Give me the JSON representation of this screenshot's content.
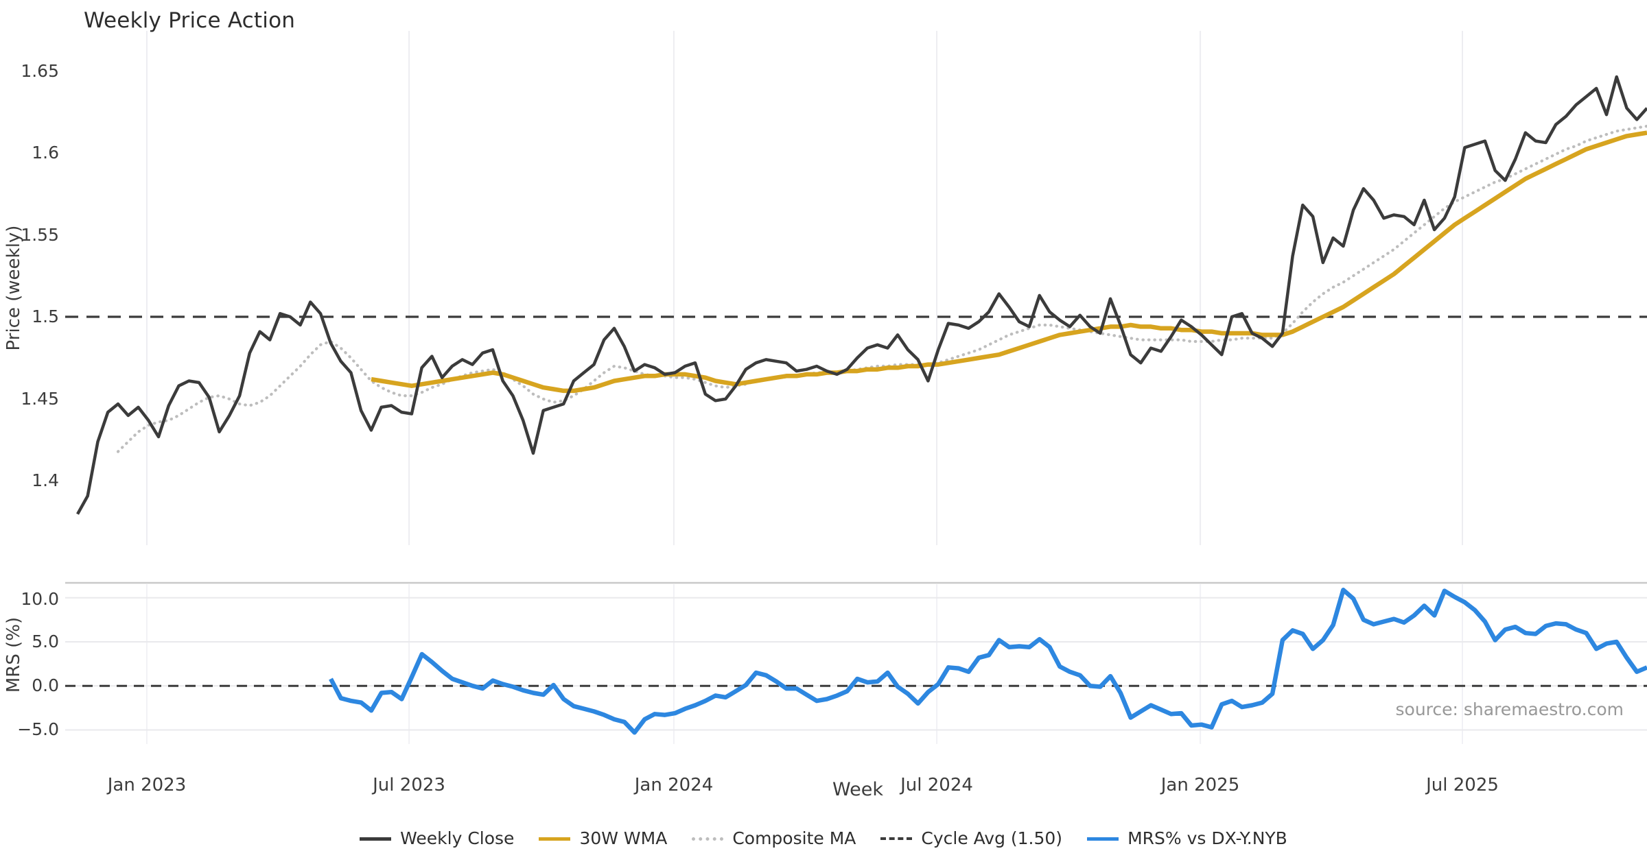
{
  "title": "Weekly Price Action",
  "source_note": "source: sharemaestro.com",
  "colors": {
    "weekly_close": "#3b3b3b",
    "wma": "#d7a41f",
    "composite": "#bdbdbd",
    "cycle_avg": "#3b3b3b",
    "mrs": "#2d87e0",
    "grid_vertical": "#ededf1",
    "grid_vertical_lower": "#f1f1f5",
    "grid_horizontal": "#e9e9ec",
    "spine": "#c9c9c9",
    "text": "#3c3c3c",
    "muted_text": "#989898"
  },
  "x_axis": {
    "label": "Week",
    "tick_labels": [
      "Jan 2023",
      "Jul 2023",
      "Jan 2024",
      "Jul 2024",
      "Jan 2025",
      "Jul 2025"
    ]
  },
  "legend": {
    "position": "bottom-center",
    "items": [
      {
        "label": "Weekly Close",
        "color": "#3b3b3b",
        "style": "solid"
      },
      {
        "label": "30W WMA",
        "color": "#d7a41f",
        "style": "solid"
      },
      {
        "label": "Composite MA",
        "color": "#bdbdbd",
        "style": "dotted"
      },
      {
        "label": "Cycle Avg (1.50)",
        "color": "#3b3b3b",
        "style": "dashed"
      },
      {
        "label": "MRS% vs DX-Y.NYB",
        "color": "#2d87e0",
        "style": "solid"
      }
    ]
  },
  "chart_data": [
    {
      "id": "price",
      "type": "line",
      "title": "Weekly Price Action",
      "ylabel": "Price (weekly)",
      "xlabel": "Week",
      "x_range": [
        "2022-11",
        "2025-11"
      ],
      "x_frequency": "weekly",
      "ylim": [
        1.359,
        1.674
      ],
      "y_ticks": [
        1.65,
        1.6,
        1.55,
        1.5,
        1.45,
        1.4
      ],
      "y_tick_labels": [
        "1.65",
        "1.6",
        "1.55",
        "1.5",
        "1.45",
        "1.4"
      ],
      "grid": "vertical-only",
      "series": [
        {
          "name": "Weekly Close",
          "color": "#3b3b3b",
          "style": "solid",
          "start_frac": 0.0078,
          "values": [
            1.38,
            1.391,
            1.424,
            1.442,
            1.447,
            1.44,
            1.445,
            1.437,
            1.427,
            1.446,
            1.458,
            1.461,
            1.46,
            1.451,
            1.43,
            1.44,
            1.452,
            1.478,
            1.491,
            1.486,
            1.502,
            1.5,
            1.495,
            1.509,
            1.502,
            1.484,
            1.473,
            1.466,
            1.443,
            1.431,
            1.445,
            1.446,
            1.442,
            1.441,
            1.469,
            1.476,
            1.463,
            1.47,
            1.474,
            1.471,
            1.478,
            1.48,
            1.461,
            1.452,
            1.437,
            1.417,
            1.443,
            1.445,
            1.447,
            1.461,
            1.466,
            1.471,
            1.486,
            1.493,
            1.482,
            1.467,
            1.471,
            1.469,
            1.465,
            1.466,
            1.47,
            1.472,
            1.453,
            1.449,
            1.45,
            1.458,
            1.468,
            1.472,
            1.474,
            1.473,
            1.472,
            1.467,
            1.468,
            1.47,
            1.467,
            1.465,
            1.468,
            1.475,
            1.481,
            1.483,
            1.481,
            1.489,
            1.48,
            1.474,
            1.461,
            1.48,
            1.496,
            1.495,
            1.493,
            1.497,
            1.503,
            1.514,
            1.506,
            1.497,
            1.494,
            1.513,
            1.503,
            1.498,
            1.494,
            1.501,
            1.494,
            1.49,
            1.511,
            1.495,
            1.477,
            1.472,
            1.481,
            1.479,
            1.488,
            1.498,
            1.494,
            1.489,
            1.483,
            1.477,
            1.5,
            1.502,
            1.49,
            1.487,
            1.482,
            1.49,
            1.537,
            1.568,
            1.561,
            1.533,
            1.548,
            1.543,
            1.565,
            1.578,
            1.571,
            1.56,
            1.562,
            1.561,
            1.556,
            1.571,
            1.553,
            1.56,
            1.573,
            1.603,
            1.605,
            1.607,
            1.589,
            1.583,
            1.596,
            1.612,
            1.607,
            1.606,
            1.617,
            1.622,
            1.629,
            1.634,
            1.639,
            1.623,
            1.646,
            1.627,
            1.62,
            1.627
          ]
        },
        {
          "name": "30W WMA",
          "color": "#d7a41f",
          "style": "solid",
          "start_frac": 0.1935,
          "values": [
            1.462,
            1.461,
            1.46,
            1.459,
            1.458,
            1.459,
            1.46,
            1.461,
            1.462,
            1.463,
            1.464,
            1.465,
            1.466,
            1.465,
            1.463,
            1.461,
            1.459,
            1.457,
            1.456,
            1.455,
            1.455,
            1.456,
            1.457,
            1.459,
            1.461,
            1.462,
            1.463,
            1.464,
            1.464,
            1.465,
            1.465,
            1.465,
            1.464,
            1.463,
            1.461,
            1.46,
            1.459,
            1.46,
            1.461,
            1.462,
            1.463,
            1.464,
            1.464,
            1.465,
            1.465,
            1.466,
            1.466,
            1.467,
            1.467,
            1.468,
            1.468,
            1.469,
            1.469,
            1.47,
            1.47,
            1.471,
            1.471,
            1.472,
            1.473,
            1.474,
            1.475,
            1.476,
            1.477,
            1.479,
            1.481,
            1.483,
            1.485,
            1.487,
            1.489,
            1.49,
            1.491,
            1.492,
            1.493,
            1.494,
            1.494,
            1.495,
            1.494,
            1.494,
            1.493,
            1.493,
            1.492,
            1.492,
            1.491,
            1.491,
            1.49,
            1.49,
            1.49,
            1.49,
            1.489,
            1.489,
            1.489,
            1.491,
            1.494,
            1.497,
            1.5,
            1.503,
            1.506,
            1.51,
            1.514,
            1.518,
            1.522,
            1.526,
            1.531,
            1.536,
            1.541,
            1.546,
            1.551,
            1.556,
            1.56,
            1.564,
            1.568,
            1.572,
            1.576,
            1.58,
            1.584,
            1.587,
            1.59,
            1.593,
            1.596,
            1.599,
            1.602,
            1.604,
            1.606,
            1.608,
            1.61,
            1.611,
            1.612
          ]
        },
        {
          "name": "Composite MA",
          "color": "#bdbdbd",
          "style": "dotted",
          "start_frac": 0.0334,
          "values": [
            1.418,
            1.424,
            1.43,
            1.434,
            1.436,
            1.437,
            1.44,
            1.444,
            1.448,
            1.451,
            1.452,
            1.45,
            1.447,
            1.446,
            1.448,
            1.452,
            1.458,
            1.464,
            1.47,
            1.477,
            1.483,
            1.485,
            1.481,
            1.475,
            1.468,
            1.461,
            1.457,
            1.454,
            1.452,
            1.452,
            1.454,
            1.457,
            1.459,
            1.462,
            1.464,
            1.466,
            1.467,
            1.468,
            1.466,
            1.462,
            1.458,
            1.453,
            1.45,
            1.448,
            1.449,
            1.452,
            1.456,
            1.461,
            1.466,
            1.47,
            1.469,
            1.467,
            1.465,
            1.464,
            1.464,
            1.463,
            1.463,
            1.462,
            1.46,
            1.458,
            1.457,
            1.458,
            1.459,
            1.461,
            1.462,
            1.463,
            1.464,
            1.464,
            1.465,
            1.466,
            1.466,
            1.466,
            1.467,
            1.468,
            1.469,
            1.47,
            1.47,
            1.471,
            1.471,
            1.471,
            1.471,
            1.472,
            1.474,
            1.476,
            1.478,
            1.48,
            1.483,
            1.486,
            1.489,
            1.491,
            1.493,
            1.495,
            1.495,
            1.494,
            1.493,
            1.492,
            1.491,
            1.49,
            1.489,
            1.488,
            1.487,
            1.486,
            1.486,
            1.486,
            1.486,
            1.486,
            1.485,
            1.485,
            1.485,
            1.486,
            1.486,
            1.487,
            1.487,
            1.487,
            1.487,
            1.49,
            1.496,
            1.503,
            1.509,
            1.514,
            1.518,
            1.521,
            1.525,
            1.529,
            1.533,
            1.537,
            1.541,
            1.546,
            1.551,
            1.556,
            1.561,
            1.566,
            1.57,
            1.573,
            1.576,
            1.579,
            1.582,
            1.584,
            1.587,
            1.59,
            1.593,
            1.596,
            1.599,
            1.602,
            1.604,
            1.607,
            1.609,
            1.611,
            1.613,
            1.614,
            1.615,
            1.616
          ]
        },
        {
          "name": "Cycle Avg (1.50)",
          "color": "#3b3b3b",
          "style": "dashed",
          "constant": 1.5
        }
      ]
    },
    {
      "id": "mrs",
      "type": "line",
      "ylabel": "MRS (%)",
      "x_range": [
        "2023-05",
        "2025-11"
      ],
      "x_frequency": "weekly",
      "ylim": [
        -6.6,
        11.7
      ],
      "y_ticks": [
        10.0,
        5.0,
        0.0,
        -5.0
      ],
      "y_tick_labels": [
        "10.0",
        "5.0",
        "0.0",
        "−5.0"
      ],
      "grid": "horizontal-and-vertical",
      "zero_line": {
        "value": 0,
        "style": "dashed",
        "color": "#3b3b3b"
      },
      "series": [
        {
          "name": "MRS% vs DX-Y.NYB",
          "color": "#2d87e0",
          "style": "solid",
          "start_frac": 0.1679,
          "values": [
            0.8,
            -1.4,
            -1.7,
            -1.9,
            -2.8,
            -0.8,
            -0.7,
            -1.5,
            1.0,
            3.6,
            2.7,
            1.7,
            0.8,
            0.4,
            0.0,
            -0.3,
            0.6,
            0.2,
            -0.1,
            -0.5,
            -0.8,
            -1.0,
            0.1,
            -1.5,
            -2.3,
            -2.6,
            -2.9,
            -3.3,
            -3.8,
            -4.1,
            -5.3,
            -3.8,
            -3.2,
            -3.3,
            -3.1,
            -2.6,
            -2.2,
            -1.7,
            -1.1,
            -1.3,
            -0.6,
            0.1,
            1.5,
            1.2,
            0.5,
            -0.3,
            -0.3,
            -1.0,
            -1.7,
            -1.5,
            -1.1,
            -0.6,
            0.8,
            0.4,
            0.5,
            1.5,
            -0.1,
            -0.9,
            -2.0,
            -0.7,
            0.2,
            2.1,
            2.0,
            1.6,
            3.2,
            3.5,
            5.2,
            4.4,
            4.5,
            4.4,
            5.3,
            4.4,
            2.2,
            1.6,
            1.2,
            0.0,
            -0.1,
            1.1,
            -0.8,
            -3.6,
            -2.9,
            -2.2,
            -2.7,
            -3.2,
            -3.1,
            -4.5,
            -4.4,
            -4.7,
            -2.1,
            -1.7,
            -2.4,
            -2.2,
            -1.9,
            -0.9,
            5.2,
            6.3,
            5.9,
            4.2,
            5.2,
            6.9,
            10.9,
            9.9,
            7.5,
            7.0,
            7.3,
            7.6,
            7.2,
            8.0,
            9.1,
            8.0,
            10.8,
            10.1,
            9.5,
            8.6,
            7.3,
            5.2,
            6.4,
            6.7,
            6.0,
            5.9,
            6.8,
            7.1,
            7.0,
            6.4,
            6.0,
            4.2,
            4.8,
            5.0,
            3.2,
            1.6,
            2.1
          ]
        }
      ]
    }
  ]
}
